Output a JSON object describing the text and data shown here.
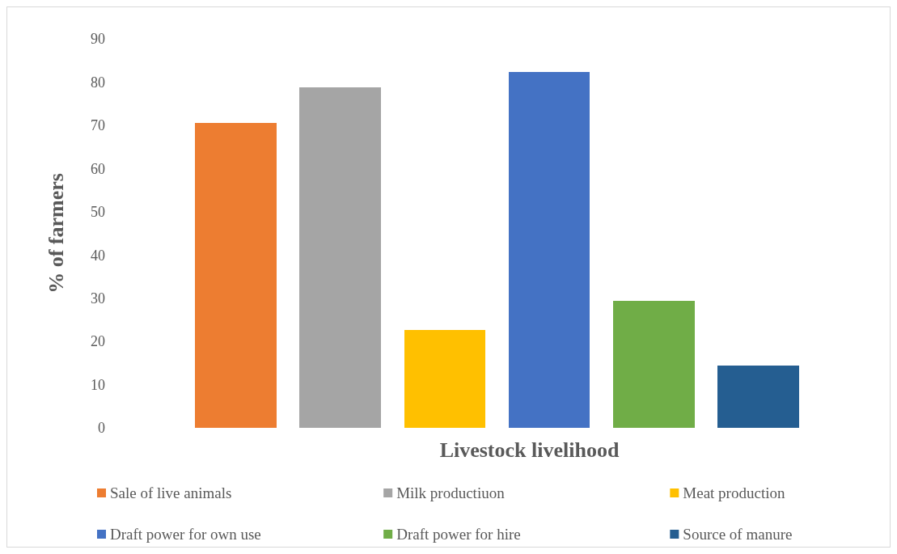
{
  "chart_data": {
    "type": "bar",
    "xlabel": "Livestock livelihood",
    "ylabel": "% of farmers",
    "categories": [
      null
    ],
    "series": [
      {
        "name": "Sale of live animals",
        "color": "#ed7d31",
        "values": [
          70.5
        ]
      },
      {
        "name": "Milk productiuon",
        "color": "#a5a5a5",
        "values": [
          78.7
        ]
      },
      {
        "name": "Meat production",
        "color": "#ffc000",
        "values": [
          22.7
        ]
      },
      {
        "name": "Draft power for own use",
        "color": "#4472c4",
        "values": [
          82.3
        ]
      },
      {
        "name": "Draft power for hire",
        "color": "#70ad47",
        "values": [
          29.4
        ]
      },
      {
        "name": "Source of manure",
        "color": "#255e91",
        "values": [
          14.4
        ]
      }
    ],
    "ylim": [
      0,
      90
    ],
    "yticks": [
      0,
      10,
      20,
      30,
      40,
      50,
      60,
      70,
      80,
      90
    ],
    "grid": false,
    "legend": "bottom"
  }
}
